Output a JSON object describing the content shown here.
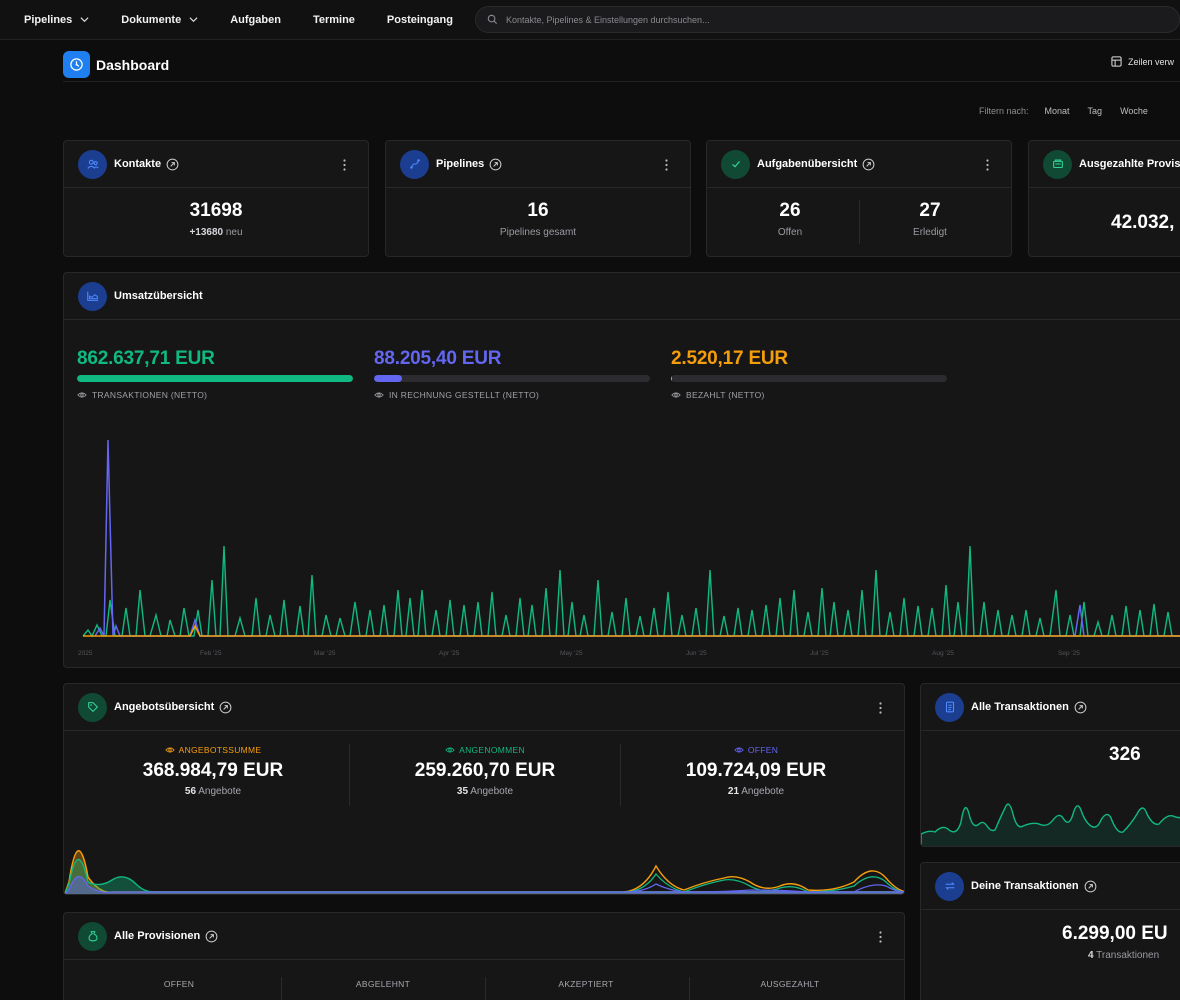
{
  "nav": {
    "items": [
      {
        "label": "Pipelines",
        "has_dropdown": true
      },
      {
        "label": "Dokumente",
        "has_dropdown": true
      },
      {
        "label": "Aufgaben",
        "has_dropdown": false
      },
      {
        "label": "Termine",
        "has_dropdown": false
      },
      {
        "label": "Posteingang",
        "has_dropdown": false
      }
    ],
    "search_placeholder": "Kontakte, Pipelines & Einstellungen durchsuchen..."
  },
  "header": {
    "title": "Dashboard",
    "rows_button": "Zeilen verw"
  },
  "filter": {
    "label": "Filtern nach:",
    "options": [
      "Monat",
      "Tag",
      "Woche"
    ]
  },
  "kpis": {
    "contacts": {
      "title": "Kontakte",
      "value": "31698",
      "delta": "+13680",
      "delta_suffix": "neu"
    },
    "pipelines": {
      "title": "Pipelines",
      "value": "16",
      "sub": "Pipelines gesamt"
    },
    "tasks": {
      "title": "Aufgabenübersicht",
      "open_value": "26",
      "open_label": "Offen",
      "done_value": "27",
      "done_label": "Erledigt"
    },
    "commission": {
      "title": "Ausgezahlte Provisi",
      "value": "42.032,"
    }
  },
  "revenue": {
    "title": "Umsatzübersicht",
    "items": [
      {
        "amount": "862.637,71 EUR",
        "label": "TRANSAKTIONEN (NETTO)",
        "color": "#10b981",
        "fill": 1.0
      },
      {
        "amount": "88.205,40 EUR",
        "label": "IN RECHNUNG GESTELLT (NETTO)",
        "color": "#6366f1",
        "fill": 0.102
      },
      {
        "amount": "2.520,17 EUR",
        "label": "BEZAHLT (NETTO)",
        "color": "#f59e0b",
        "fill": 0.003
      }
    ],
    "x_ticks": [
      "2025",
      "Feb '25",
      "Mar '25",
      "Apr '25",
      "May '25",
      "Jun '25",
      "Jul '25",
      "Aug '25",
      "Sep '25"
    ]
  },
  "offers": {
    "title": "Angebotsübersicht",
    "cols": [
      {
        "tag": "ANGEBOTSSUMME",
        "color": "#f59e0b",
        "amount": "368.984,79 EUR",
        "count": "56",
        "count_label": "Angebote"
      },
      {
        "tag": "ANGENOMMEN",
        "color": "#10b981",
        "amount": "259.260,70 EUR",
        "count": "35",
        "count_label": "Angebote"
      },
      {
        "tag": "OFFEN",
        "color": "#6366f1",
        "amount": "109.724,09 EUR",
        "count": "21",
        "count_label": "Angebote"
      }
    ]
  },
  "all_transactions": {
    "title": "Alle Transaktionen",
    "value": "326"
  },
  "your_transactions": {
    "title": "Deine Transaktionen",
    "value": "6.299,00 EU",
    "count": "4",
    "count_label": "Transaktionen"
  },
  "provisions": {
    "title": "Alle Provisionen",
    "cols": [
      "OFFEN",
      "ABGELEHNT",
      "AKZEPTIERT",
      "AUSGEZAHLT"
    ]
  },
  "colors": {
    "green": "#10b981",
    "indigo": "#6366f1",
    "amber": "#f59e0b",
    "blue": "#1f7ff0"
  }
}
